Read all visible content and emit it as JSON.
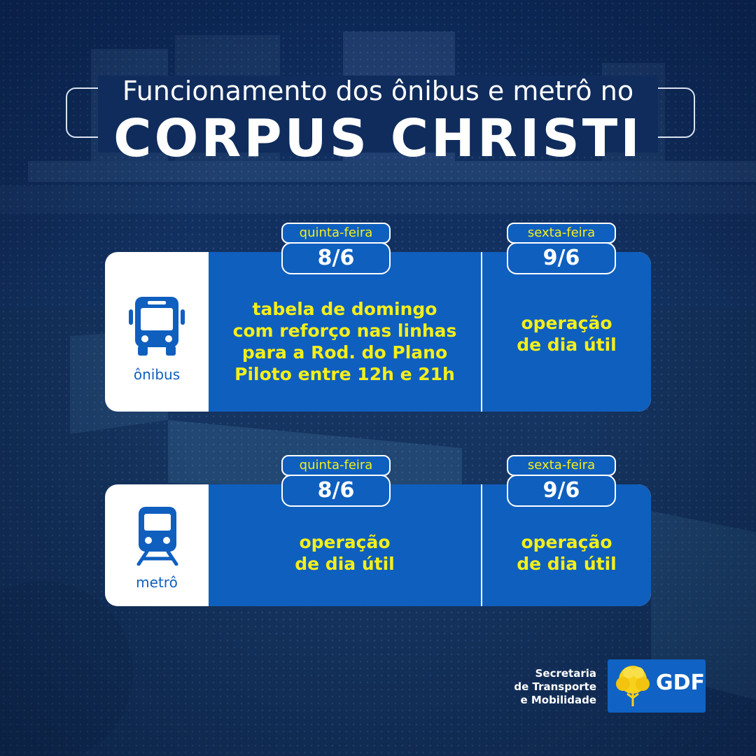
{
  "header": {
    "subtitle": "Funcionamento dos ônibus e metrô no",
    "title": "CORPUS CHRISTI"
  },
  "onibus": {
    "mode_label": "ônibus",
    "icon": "bus-icon",
    "day1": {
      "weekday": "quinta-feira",
      "date": "8/6",
      "lines": [
        "tabela de domingo",
        "com reforço nas linhas",
        "para a Rod. do Plano",
        "Piloto entre 12h e 21h"
      ]
    },
    "day2": {
      "weekday": "sexta-feira",
      "date": "9/6",
      "lines": [
        "operação",
        "de dia útil"
      ]
    }
  },
  "metro": {
    "mode_label": "metrô",
    "icon": "train-icon",
    "day1": {
      "weekday": "quinta-feira",
      "date": "8/6",
      "lines": [
        "operação",
        "de dia útil"
      ]
    },
    "day2": {
      "weekday": "sexta-feira",
      "date": "9/6",
      "lines": [
        "operação",
        "de dia útil"
      ]
    }
  },
  "footer": {
    "secretaria_lines": [
      "Secretaria",
      "de Transporte",
      "e Mobilidade"
    ],
    "gdf_label": "GDF"
  },
  "colors": {
    "brand_blue": "#0f5fbf",
    "highlight_yellow": "#f4ef1a",
    "background_navy": "#12305f"
  }
}
